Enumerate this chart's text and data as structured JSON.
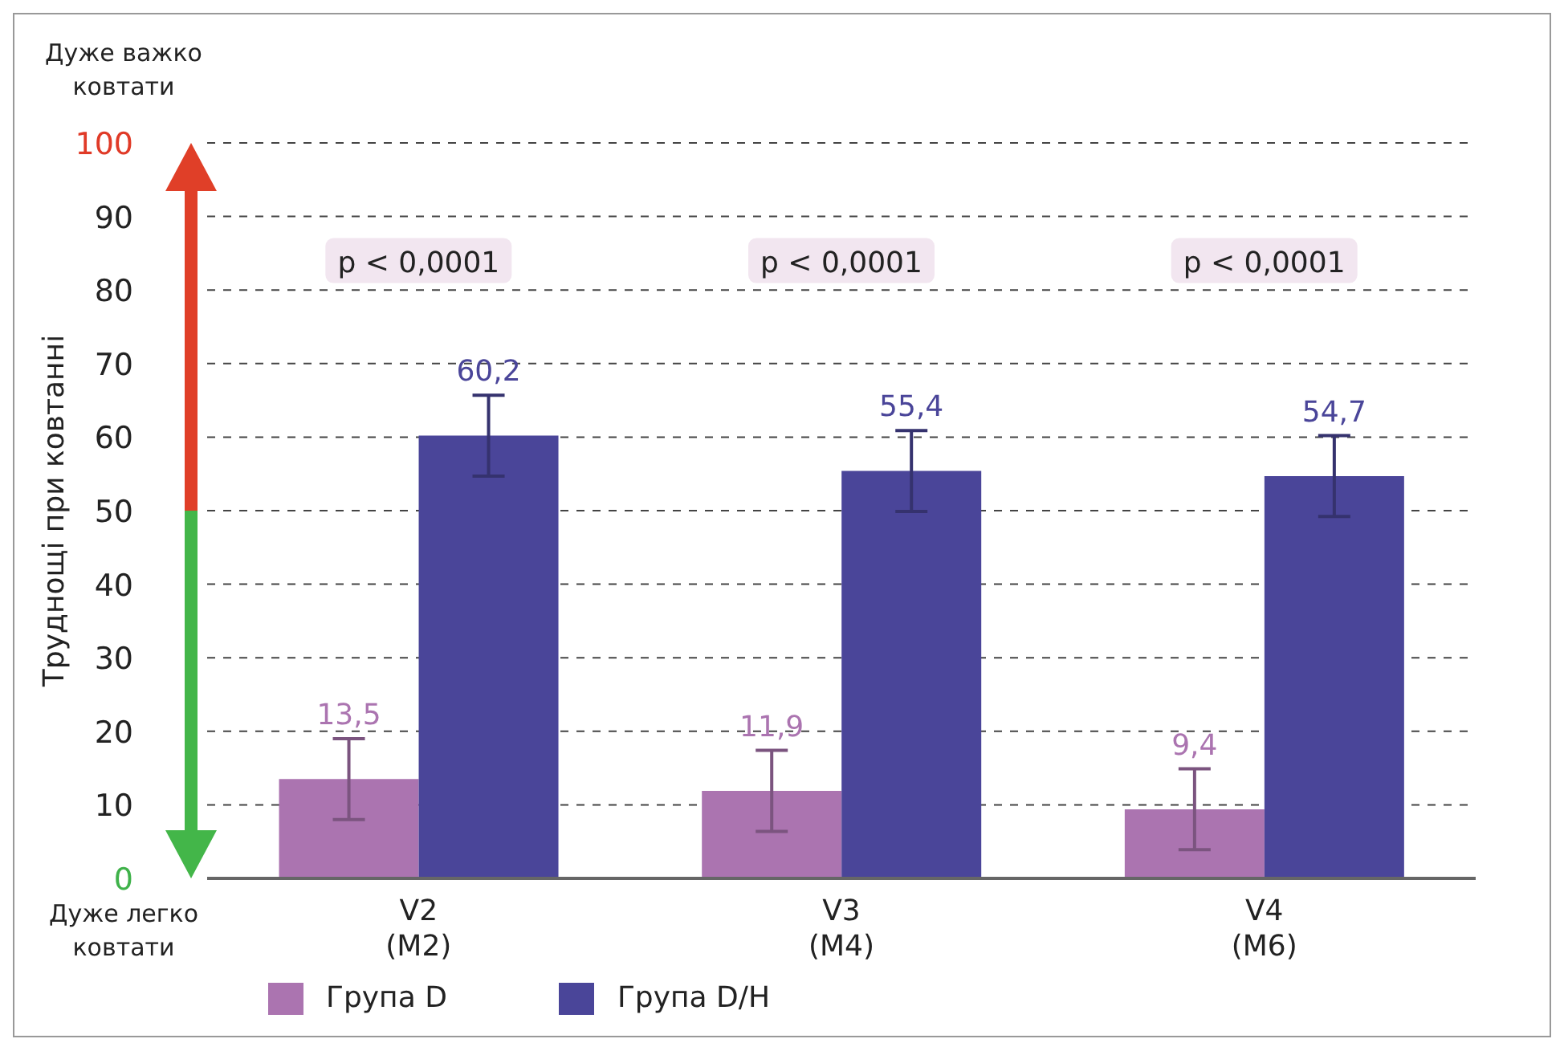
{
  "chart_data": {
    "type": "bar",
    "ylabel": "Труднощі при ковтанні",
    "categories": [
      "V2\n(M2)",
      "V3\n(M4)",
      "V4\n(M6)"
    ],
    "series": [
      {
        "name": "Група D",
        "color": "#ab74b0",
        "values": [
          13.5,
          11.9,
          9.4
        ],
        "errors": [
          5.5,
          5.5,
          5.5
        ],
        "value_labels": [
          "13,5",
          "11,9",
          "9,4"
        ]
      },
      {
        "name": "Група D/H",
        "color": "#4a4599",
        "values": [
          60.2,
          55.4,
          54.7
        ],
        "errors": [
          5.5,
          5.5,
          5.5
        ],
        "value_labels": [
          "60,2",
          "55,4",
          "54,7"
        ]
      }
    ],
    "ylim": [
      0,
      100
    ],
    "yticks": [
      0,
      10,
      20,
      30,
      40,
      50,
      60,
      70,
      80,
      90,
      100
    ],
    "grid": "y",
    "legend": "bottom left",
    "annotations": [
      "p < 0,0001",
      "p < 0,0001",
      "p < 0,0001",
      "Дуже важко ковтати",
      "Дуже легко ковтати"
    ]
  }
}
